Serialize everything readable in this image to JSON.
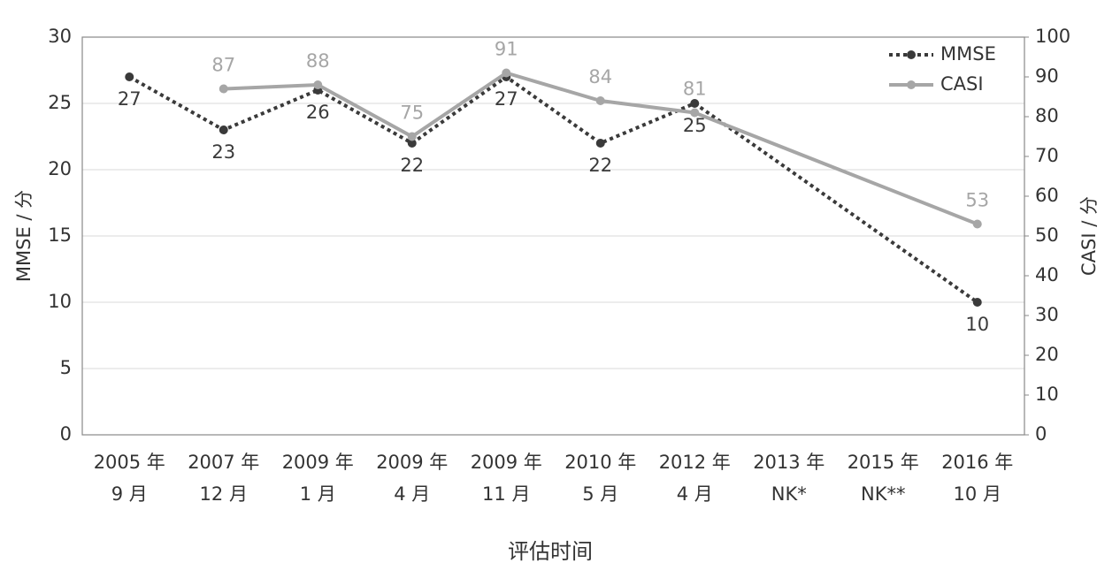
{
  "chart_data": {
    "type": "line",
    "x_label": "评估时间",
    "y_label": "MMSE / 分",
    "y2_label": "CASI / 分",
    "categories": [
      [
        "2005 年",
        "9 月"
      ],
      [
        "2007 年",
        "12 月"
      ],
      [
        "2009 年",
        "1 月"
      ],
      [
        "2009 年",
        "4 月"
      ],
      [
        "2009 年",
        "11 月"
      ],
      [
        "2010 年",
        "5 月"
      ],
      [
        "2012 年",
        "4 月"
      ],
      [
        "2013 年",
        "NK*"
      ],
      [
        "2015 年",
        "NK**"
      ],
      [
        "2016 年",
        "10 月"
      ]
    ],
    "series": [
      {
        "name": "MMSE",
        "color": "#3a3a3a",
        "dash": "dotted",
        "values": [
          27,
          23,
          26,
          22,
          27,
          22,
          25,
          null,
          null,
          10
        ],
        "label_position": "below"
      },
      {
        "name": "CASI",
        "color": "#a6a6a6",
        "axis": "y2",
        "values": [
          null,
          87,
          88,
          75,
          91,
          84,
          81,
          null,
          null,
          53
        ],
        "label_position": "above"
      }
    ],
    "span_gaps": true,
    "ylim": [
      0,
      30
    ],
    "yticks": [
      0,
      5,
      10,
      15,
      20,
      25,
      30
    ],
    "y2lim": [
      0,
      100
    ],
    "y2ticks": [
      0,
      10,
      20,
      30,
      40,
      50,
      60,
      70,
      80,
      90,
      100
    ],
    "grid": true,
    "legend": "top-right"
  }
}
